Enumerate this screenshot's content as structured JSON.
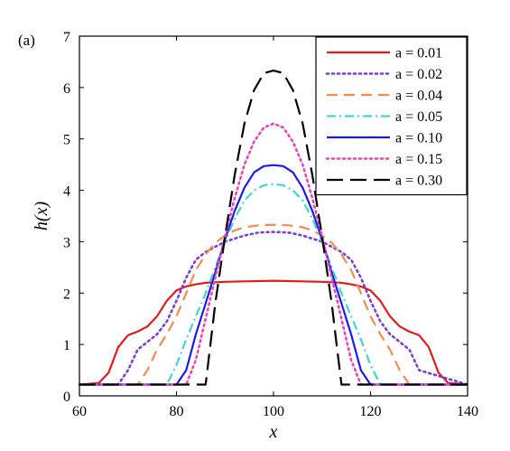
{
  "chart_data": {
    "type": "line",
    "panel_label": "(a)",
    "xlabel": "x",
    "ylabel": "h(x)",
    "xlim": [
      60,
      140
    ],
    "ylim": [
      0,
      7
    ],
    "xticks": [
      60,
      80,
      100,
      120,
      140
    ],
    "yticks": [
      0,
      1,
      2,
      3,
      4,
      5,
      6,
      7
    ],
    "legend_position": "top-right",
    "series": [
      {
        "name": "a = 0.01",
        "color": "#e41a1c",
        "dash": "solid",
        "x": [
          60,
          64,
          66,
          68,
          70,
          72,
          74,
          76,
          78,
          80,
          82,
          84,
          86,
          90,
          95,
          100,
          105,
          110,
          114,
          116,
          118,
          120,
          122,
          124,
          126,
          128,
          130,
          132,
          134,
          136,
          140
        ],
        "y": [
          0.22,
          0.25,
          0.45,
          0.95,
          1.18,
          1.25,
          1.35,
          1.55,
          1.85,
          2.05,
          2.13,
          2.17,
          2.2,
          2.22,
          2.23,
          2.24,
          2.23,
          2.22,
          2.2,
          2.17,
          2.13,
          2.05,
          1.85,
          1.55,
          1.35,
          1.25,
          1.18,
          0.95,
          0.45,
          0.25,
          0.22
        ]
      },
      {
        "name": "a = 0.02",
        "color": "#7d3fd4",
        "dash": "dotted",
        "x": [
          60,
          68,
          70,
          72,
          74,
          76,
          78,
          80,
          82,
          84,
          86,
          88,
          90,
          94,
          97,
          100,
          103,
          106,
          110,
          112,
          114,
          116,
          118,
          120,
          122,
          124,
          126,
          128,
          130,
          140
        ],
        "y": [
          0.22,
          0.22,
          0.5,
          0.9,
          1.05,
          1.2,
          1.45,
          1.85,
          2.3,
          2.65,
          2.8,
          2.9,
          3.0,
          3.12,
          3.18,
          3.19,
          3.18,
          3.12,
          3.0,
          2.9,
          2.8,
          2.65,
          2.3,
          1.85,
          1.45,
          1.2,
          1.05,
          0.9,
          0.5,
          0.22
        ]
      },
      {
        "name": "a = 0.04",
        "color": "#f58c4f",
        "dash": "dash",
        "x": [
          60,
          72,
          74,
          76,
          78,
          80,
          82,
          84,
          86,
          88,
          90,
          92,
          94,
          97,
          100,
          103,
          106,
          108,
          110,
          112,
          114,
          116,
          118,
          120,
          122,
          124,
          126,
          128,
          140
        ],
        "y": [
          0.22,
          0.22,
          0.5,
          0.9,
          1.2,
          1.55,
          2.0,
          2.45,
          2.75,
          2.98,
          3.12,
          3.22,
          3.28,
          3.32,
          3.33,
          3.32,
          3.28,
          3.22,
          3.12,
          2.98,
          2.75,
          2.45,
          2.0,
          1.55,
          1.2,
          0.9,
          0.5,
          0.22,
          0.22
        ]
      },
      {
        "name": "a = 0.05",
        "color": "#40d8c8",
        "dash": "dashdot",
        "x": [
          60,
          78,
          80,
          82,
          84,
          86,
          88,
          90,
          92,
          94,
          96,
          98,
          100,
          102,
          104,
          106,
          108,
          110,
          112,
          114,
          116,
          118,
          120,
          122,
          140
        ],
        "y": [
          0.22,
          0.22,
          0.6,
          1.1,
          1.55,
          2.0,
          2.5,
          3.0,
          3.45,
          3.8,
          4.0,
          4.1,
          4.12,
          4.1,
          4.0,
          3.8,
          3.45,
          3.0,
          2.5,
          2.0,
          1.55,
          1.1,
          0.6,
          0.22,
          0.22
        ]
      },
      {
        "name": "a = 0.10",
        "color": "#1a1aee",
        "dash": "solid",
        "x": [
          60,
          80,
          82,
          84,
          86,
          88,
          90,
          92,
          94,
          96,
          98,
          100,
          102,
          104,
          106,
          108,
          110,
          112,
          114,
          116,
          118,
          120,
          140
        ],
        "y": [
          0.22,
          0.22,
          0.5,
          1.2,
          1.8,
          2.4,
          3.05,
          3.6,
          4.05,
          4.35,
          4.47,
          4.49,
          4.47,
          4.35,
          4.05,
          3.6,
          3.05,
          2.4,
          1.8,
          1.2,
          0.5,
          0.22,
          0.22
        ]
      },
      {
        "name": "a = 0.15",
        "color": "#ee44b8",
        "dash": "dotted",
        "x": [
          60,
          82,
          84,
          86,
          88,
          90,
          92,
          94,
          96,
          98,
          100,
          102,
          104,
          106,
          108,
          110,
          112,
          114,
          116,
          118,
          140
        ],
        "y": [
          0.22,
          0.22,
          0.7,
          1.5,
          2.3,
          3.1,
          3.85,
          4.5,
          4.95,
          5.22,
          5.3,
          5.22,
          4.95,
          4.5,
          3.85,
          3.1,
          2.3,
          1.5,
          0.7,
          0.22,
          0.22
        ]
      },
      {
        "name": "a = 0.30",
        "color": "#000000",
        "dash": "longdash",
        "x": [
          60,
          85,
          86,
          87,
          88,
          90,
          92,
          94,
          96,
          98,
          100,
          102,
          104,
          106,
          108,
          110,
          112,
          113,
          114,
          115,
          140
        ],
        "y": [
          0.22,
          0.22,
          0.22,
          1.0,
          1.8,
          3.1,
          4.3,
          5.3,
          5.95,
          6.28,
          6.33,
          6.28,
          5.95,
          5.3,
          4.3,
          3.1,
          1.8,
          1.0,
          0.22,
          0.22,
          0.22
        ]
      }
    ]
  }
}
